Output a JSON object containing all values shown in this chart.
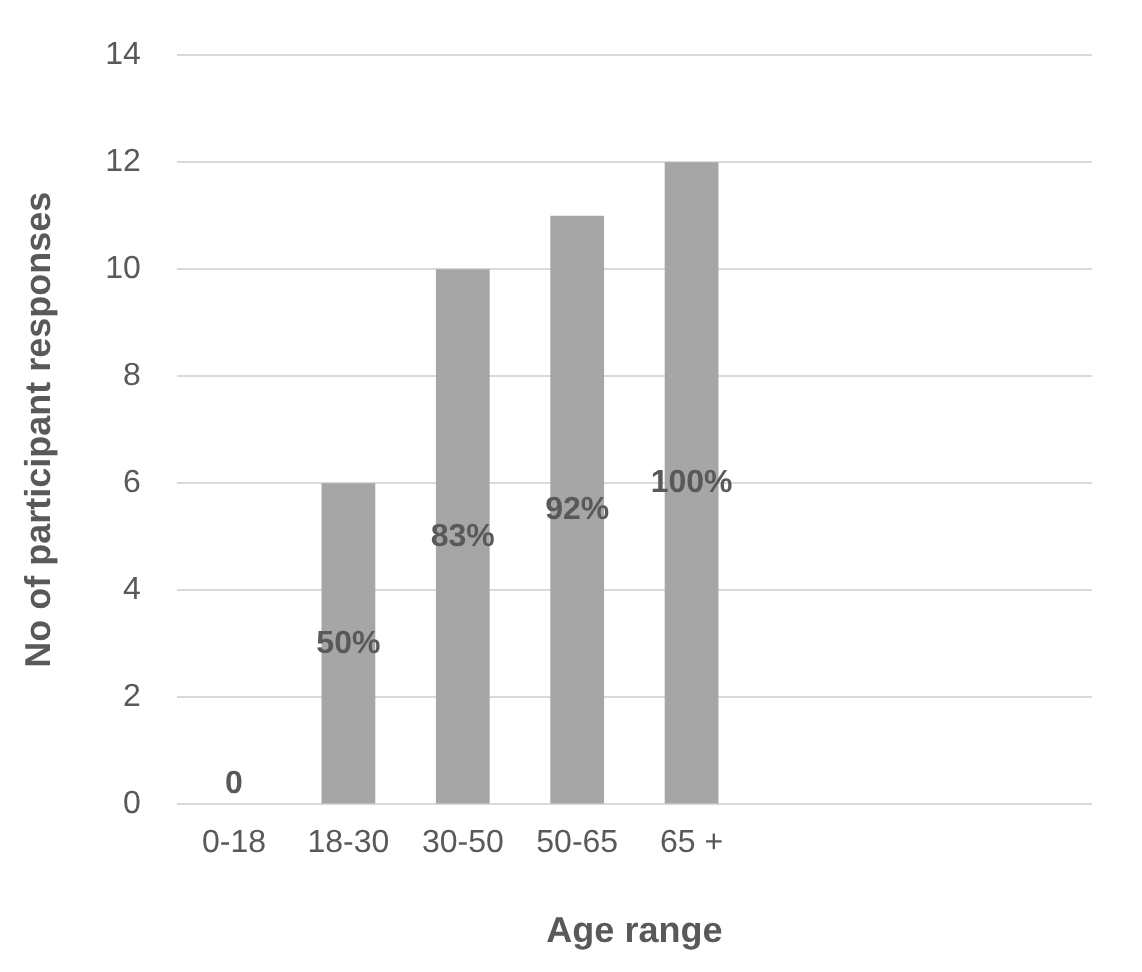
{
  "chart_data": {
    "type": "bar",
    "xlabel": "Age range",
    "ylabel": "No of participant responses",
    "categories": [
      "0-18",
      "18-30",
      "30-50",
      "50-65",
      "65 +",
      null,
      null,
      null
    ],
    "values": [
      0,
      6,
      10,
      11,
      12,
      null,
      null,
      null
    ],
    "color": "#a6a6a6",
    "ylim": [
      0,
      14
    ],
    "yticks": [
      0,
      2,
      4,
      6,
      8,
      10,
      12,
      14
    ],
    "grid": "y",
    "legend": false,
    "annotations": [
      "0",
      "50%",
      "83%",
      "92%",
      "100%"
    ]
  }
}
